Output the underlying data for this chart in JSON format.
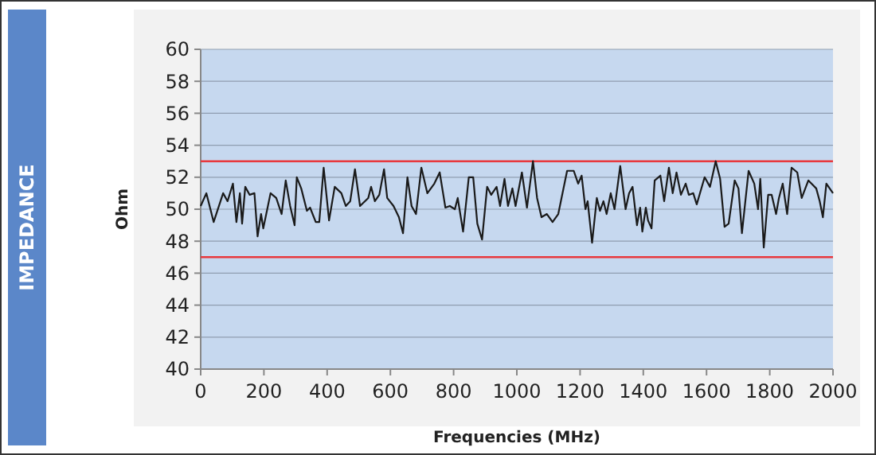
{
  "chart_data": {
    "type": "line",
    "title": "IMPEDANCE",
    "xlabel": "Frequencies (MHz)",
    "ylabel": "Ohm",
    "xlim": [
      0,
      2000
    ],
    "xticks": [
      0,
      200,
      400,
      600,
      800,
      1000,
      1200,
      1400,
      1600,
      1800,
      2000
    ],
    "ylim": [
      40,
      60
    ],
    "yticks": [
      40,
      42,
      44,
      46,
      48,
      50,
      52,
      54,
      56,
      58,
      60
    ],
    "grid": "y",
    "marker": "none",
    "line_style": "solid",
    "ref_lines": [
      {
        "axis": "y",
        "value": 53,
        "color": "#e8383d"
      },
      {
        "axis": "y",
        "value": 47,
        "color": "#e8383d"
      }
    ],
    "series": [
      {
        "color": "#1a1a1a",
        "x": [
          0,
          18,
          41,
          71,
          85,
          102,
          113,
          124,
          131,
          141,
          155,
          170,
          180,
          191,
          198,
          221,
          239,
          256,
          269,
          283,
          297,
          304,
          318,
          336,
          346,
          364,
          375,
          389,
          406,
          424,
          445,
          459,
          473,
          488,
          504,
          530,
          539,
          551,
          565,
          580,
          590,
          610,
          627,
          640,
          654,
          667,
          681,
          698,
          717,
          739,
          756,
          774,
          788,
          804,
          813,
          830,
          848,
          862,
          875,
          890,
          906,
          919,
          936,
          947,
          961,
          972,
          986,
          996,
          1016,
          1032,
          1051,
          1064,
          1078,
          1095,
          1113,
          1131,
          1159,
          1180,
          1194,
          1205,
          1217,
          1224,
          1238,
          1253,
          1263,
          1274,
          1284,
          1297,
          1309,
          1327,
          1344,
          1355,
          1366,
          1380,
          1390,
          1397,
          1408,
          1415,
          1426,
          1436,
          1454,
          1466,
          1481,
          1493,
          1505,
          1519,
          1534,
          1544,
          1558,
          1569,
          1594,
          1611,
          1629,
          1643,
          1657,
          1670,
          1689,
          1701,
          1712,
          1733,
          1751,
          1763,
          1770,
          1781,
          1795,
          1806,
          1820,
          1829,
          1841,
          1855,
          1869,
          1887,
          1901,
          1922,
          1947,
          1958,
          1968,
          1979,
          2000
        ],
        "values": [
          50.2,
          51.0,
          49.2,
          51.0,
          50.5,
          51.6,
          49.2,
          51.0,
          49.1,
          51.4,
          50.9,
          51.0,
          48.3,
          49.7,
          48.8,
          51.0,
          50.7,
          49.7,
          51.8,
          50.2,
          49.0,
          52.0,
          51.3,
          49.9,
          50.1,
          49.2,
          49.2,
          52.6,
          49.3,
          51.4,
          51.0,
          50.2,
          50.5,
          52.5,
          50.2,
          50.7,
          51.4,
          50.5,
          50.9,
          52.5,
          50.7,
          50.2,
          49.5,
          48.5,
          52.0,
          50.2,
          49.7,
          52.6,
          51.0,
          51.6,
          52.3,
          50.1,
          50.2,
          50.0,
          50.7,
          48.6,
          52.0,
          52.0,
          49.1,
          48.1,
          51.4,
          50.9,
          51.4,
          50.2,
          51.9,
          50.2,
          51.3,
          50.2,
          52.3,
          50.1,
          53.0,
          50.7,
          49.5,
          49.7,
          49.2,
          49.7,
          52.4,
          52.4,
          51.6,
          52.1,
          50.0,
          50.5,
          47.9,
          50.7,
          49.9,
          50.5,
          49.7,
          51.0,
          50.0,
          52.7,
          50.0,
          51.0,
          51.4,
          49.0,
          50.1,
          48.6,
          50.1,
          49.3,
          48.8,
          51.8,
          52.1,
          50.5,
          52.6,
          51.0,
          52.3,
          50.9,
          51.6,
          50.9,
          51.0,
          50.3,
          52.0,
          51.4,
          53.0,
          51.9,
          48.9,
          49.1,
          51.8,
          51.3,
          48.5,
          52.4,
          51.6,
          50.0,
          51.9,
          47.6,
          50.9,
          50.9,
          49.7,
          50.7,
          51.6,
          49.7,
          52.6,
          52.3,
          50.7,
          51.8,
          51.3,
          50.5,
          49.5,
          51.6,
          51.0
        ]
      }
    ]
  }
}
